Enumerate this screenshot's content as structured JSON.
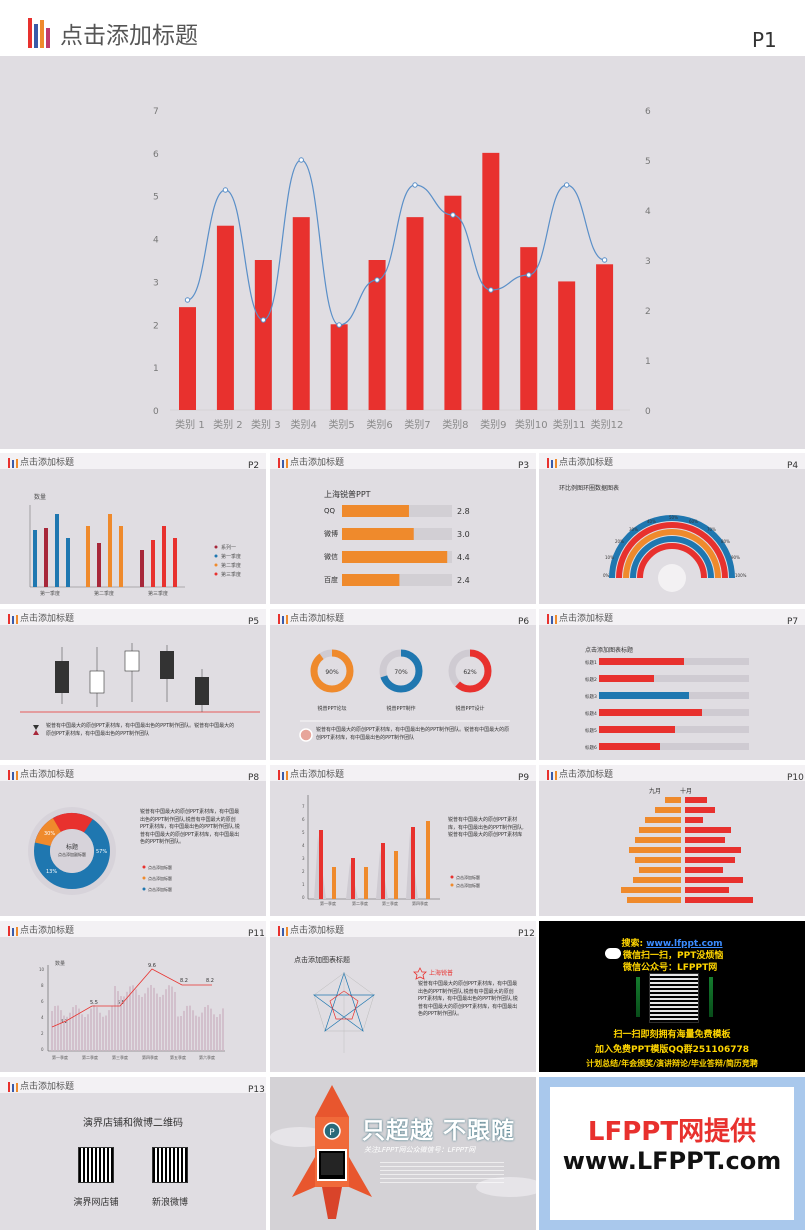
{
  "slide1": {
    "title": "点击添加标题",
    "num": "P1",
    "chart_data": {
      "type": "bar",
      "categories": [
        "类别 1",
        "类别 2",
        "类别 3",
        "类别4",
        "类别5",
        "类别6",
        "类别7",
        "类别8",
        "类别9",
        "类别10",
        "类别11",
        "类别12"
      ],
      "series": [
        {
          "values": [
            2.4,
            4.3,
            3.5,
            4.5,
            2.0,
            3.5,
            4.5,
            5.0,
            6.0,
            3.8,
            3.0,
            3.4
          ]
        },
        {
          "values": [
            2.2,
            4.4,
            1.8,
            5.0,
            1.7,
            2.6,
            4.5,
            3.9,
            2.4,
            2.7,
            4.5,
            3.0
          ]
        }
      ],
      "ylim_left": [
        0,
        7
      ],
      "ylim_right": [
        0,
        6
      ],
      "yticks_left": [
        "0",
        "1",
        "2",
        "3",
        "4",
        "5",
        "6",
        "7"
      ],
      "yticks_right": [
        "0",
        "1",
        "2",
        "3",
        "4",
        "5",
        "6"
      ]
    }
  },
  "thumbs": {
    "title": "点击添加标题",
    "p2": {
      "num": "P2",
      "ylabel": "数量",
      "legend": [
        "系列一",
        "第一季度",
        "第二季度",
        "第三季度"
      ],
      "xlabels": [
        "第一季度",
        "第二季度",
        "第三季度"
      ]
    },
    "p3": {
      "num": "P3",
      "heading": "上海锐普PPT",
      "rows": [
        {
          "label": "QQ",
          "value": "2.8",
          "v": 2.8
        },
        {
          "label": "微博",
          "value": "3.0",
          "v": 3.0
        },
        {
          "label": "微信",
          "value": "4.4",
          "v": 4.4
        },
        {
          "label": "百度",
          "value": "2.4",
          "v": 2.4
        }
      ]
    },
    "p4": {
      "num": "P4",
      "heading": "环比例图环圈数据图表"
    },
    "p5": {
      "num": "P5",
      "text": "锐普有中国最大的原创PPT素材库，有中国最出色的PPT制作团队。锐普有中国最大的原创PPT素材库，有中国最出色的PPT制作团队"
    },
    "p6": {
      "num": "P6",
      "donuts": [
        {
          "pct": "90%",
          "label": "锐普PPT论坛"
        },
        {
          "pct": "70%",
          "label": "锐普PPT制作"
        },
        {
          "pct": "62%",
          "label": "锐普PPT设计"
        }
      ],
      "text": "锐普有中国最大的原创PPT素材库，有中国最出色的PPT制作团队。锐普有中国最大的原创PPT素材库，有中国最出色的PPT制作团队"
    },
    "p7": {
      "num": "P7",
      "heading": "点击添加图表标题",
      "rows": [
        "标题1",
        "标题2",
        "标题3",
        "标题4",
        "标题5",
        "标题6"
      ]
    },
    "p8": {
      "num": "P8",
      "center": "标题",
      "center_sub": "点击添加副标题",
      "pcts": [
        "30%",
        "57%",
        "13%"
      ],
      "text": "锐普有中国最大的原创PPT素材库，有中国最出色的PPT制作团队,锐普有中国最大的原创PPT素材库，有中国最出色的PPT制作团队,锐普有中国最大的原创PPT素材库，有中国最出色的PPT制作团队。",
      "legend": [
        "点击添加标题",
        "点击添加标题",
        "点击添加标题"
      ]
    },
    "p9": {
      "num": "P9",
      "xlabels": [
        "第一季度",
        "第二季度",
        "第三季度",
        "第四季度"
      ],
      "text": "锐普有中国最大的原创PPT素材库，有中国最出色的PPT制作团队,锐普有中国最大的原创PPT素材库",
      "legend": [
        "点击添加标题",
        "点击添加标题"
      ]
    },
    "p10": {
      "num": "P10",
      "months": [
        "九月",
        "十月"
      ]
    },
    "p11": {
      "num": "P11",
      "ylabel": "数量",
      "labels": [
        "3.2",
        "5.5",
        "5.5",
        "9.6",
        "8.2",
        "8.2"
      ],
      "xlabels": [
        "第一季度",
        "第二季度",
        "第三季度",
        "第四季度",
        "第五季度",
        "第六季度"
      ]
    },
    "p12": {
      "num": "P12",
      "heading": "点击添加图表标题",
      "side_title": "上海锐普",
      "text": "锐普有中国最大的原创PPT素材库，有中国最出色的PPT制作团队,锐普有中国最大的原创PPT素材库，有中国最出色的PPT制作团队,锐普有中国最大的原创PPT素材库，有中国最出色的PPT制作团队。"
    },
    "p13": {
      "num": "P13",
      "heading": "演界店铺和微博二维码",
      "qr1": "演界网店铺",
      "qr2": "新浪微博"
    }
  },
  "ad_black": {
    "line1_prefix": "搜索:",
    "line1_link": "www.lfppt.com",
    "line2": "微信扫一扫，PPT没烦恼",
    "line3": "微信公众号：LFPPT网",
    "line4": "扫一扫即刻拥有海量免费模板",
    "line5": "加入免费PPT模版QQ群251106778",
    "line6": "计划总结/年会颁奖/演讲辩论/毕业答辩/简历竞聘"
  },
  "ad_rocket": {
    "headline": "只超越 不跟随",
    "subline": "关注LFPPT网公众微信号：LFPPT网"
  },
  "ad_brand": {
    "line1": "LFPPT网提供",
    "line2": "www.LFPPT.com"
  },
  "colors": {
    "red": "#e8312e",
    "blue": "#1f77b0",
    "orange": "#ef8a2c",
    "dark": "#333333",
    "bg": "#e0dde2"
  }
}
